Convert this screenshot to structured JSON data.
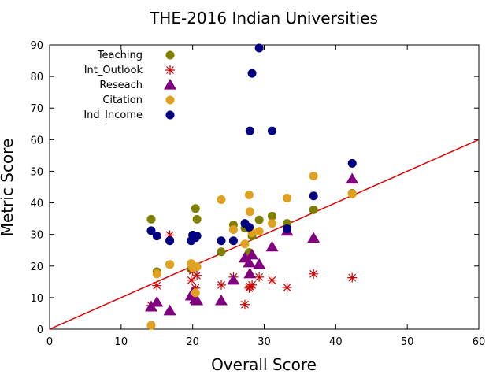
{
  "chart_data": {
    "type": "scatter",
    "title": "THE-2016 Indian Universities",
    "xlabel": "Overall Score",
    "ylabel": "Metric Score",
    "xlim": [
      0,
      60
    ],
    "ylim": [
      0,
      90
    ],
    "xticks": [
      "0",
      "10",
      "20",
      "30",
      "40",
      "50",
      "60"
    ],
    "yticks": [
      "0",
      "10",
      "20",
      "30",
      "40",
      "50",
      "60",
      "70",
      "80",
      "90"
    ],
    "grid": false,
    "legend_position": "top-left",
    "x": [
      14.2,
      15.0,
      16.8,
      19.8,
      20.0,
      20.4,
      20.6,
      24.0,
      25.7,
      27.3,
      27.9,
      28.0,
      28.3,
      29.3,
      31.1,
      33.2,
      36.9,
      42.3
    ],
    "series": [
      {
        "name": "Teaching",
        "marker": "circle",
        "color": "#808000",
        "values": [
          34.8,
          18.2,
          20.5,
          19.0,
          29.8,
          38.2,
          34.8,
          24.5,
          33.0,
          32.0,
          24.3,
          32.0,
          29.5,
          34.6,
          35.8,
          33.5,
          37.8,
          43.0
        ]
      },
      {
        "name": "Int_Outlook",
        "marker": "star",
        "color": "#cc0000",
        "values": [
          7.5,
          13.8,
          29.8,
          15.5,
          18.5,
          13.0,
          17.0,
          14.0,
          16.5,
          7.8,
          13.0,
          13.5,
          14.0,
          16.5,
          15.5,
          13.2,
          17.5,
          16.3
        ]
      },
      {
        "name": "Reseach",
        "marker": "triangle",
        "color": "#800080",
        "values": [
          7.0,
          8.5,
          5.8,
          10.5,
          11.5,
          9.5,
          9.0,
          9.0,
          15.5,
          22.5,
          21.0,
          17.5,
          23.5,
          20.5,
          26.0,
          31.0,
          28.8,
          47.5
        ]
      },
      {
        "name": "Citation",
        "marker": "circle",
        "color": "#e0a020",
        "values": [
          1.2,
          17.5,
          20.5,
          20.8,
          19.5,
          11.5,
          19.8,
          41.0,
          31.5,
          27.0,
          42.5,
          37.2,
          30.5,
          31.0,
          33.5,
          41.5,
          48.5,
          42.8
        ]
      },
      {
        "name": "Ind_Income",
        "marker": "circle",
        "color": "#000080",
        "values": [
          31.2,
          29.5,
          28.0,
          28.0,
          29.8,
          29.0,
          29.5,
          28.0,
          28.0,
          33.5,
          32.3,
          62.8,
          81.0,
          89.0,
          62.8,
          31.8,
          42.2,
          52.5
        ]
      }
    ],
    "reference_line": {
      "color": "#dd0000",
      "x": [
        0,
        60
      ],
      "y": [
        0,
        60
      ]
    }
  }
}
